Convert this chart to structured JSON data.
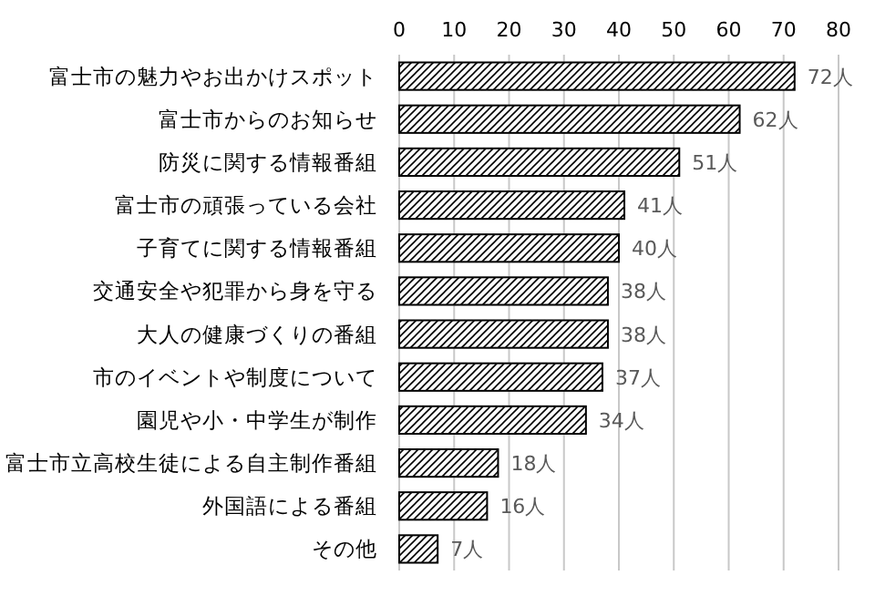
{
  "chart_data": {
    "type": "bar",
    "orientation": "horizontal",
    "categories": [
      "富士市の魅力やお出かけスポット",
      "富士市からのお知らせ",
      "防災に関する情報番組",
      "富士市の頑張っている会社",
      "子育てに関する情報番組",
      "交通安全や犯罪から身を守る",
      "大人の健康づくりの番組",
      "市のイベントや制度について",
      "園児や小・中学生が制作",
      "富士市立高校生徒による自主制作番組",
      "外国語による番組",
      "その他"
    ],
    "values": [
      72,
      62,
      51,
      41,
      40,
      38,
      38,
      37,
      34,
      18,
      16,
      7
    ],
    "value_labels": [
      "72人",
      "62人",
      "51人",
      "41人",
      "40人",
      "38人",
      "38人",
      "37人",
      "34人",
      "18人",
      "16人",
      "7人"
    ],
    "color": "#000000",
    "xlim": [
      0,
      80
    ],
    "xticks": [
      0,
      10,
      20,
      30,
      40,
      50,
      60,
      70,
      80
    ],
    "grid": "x"
  }
}
